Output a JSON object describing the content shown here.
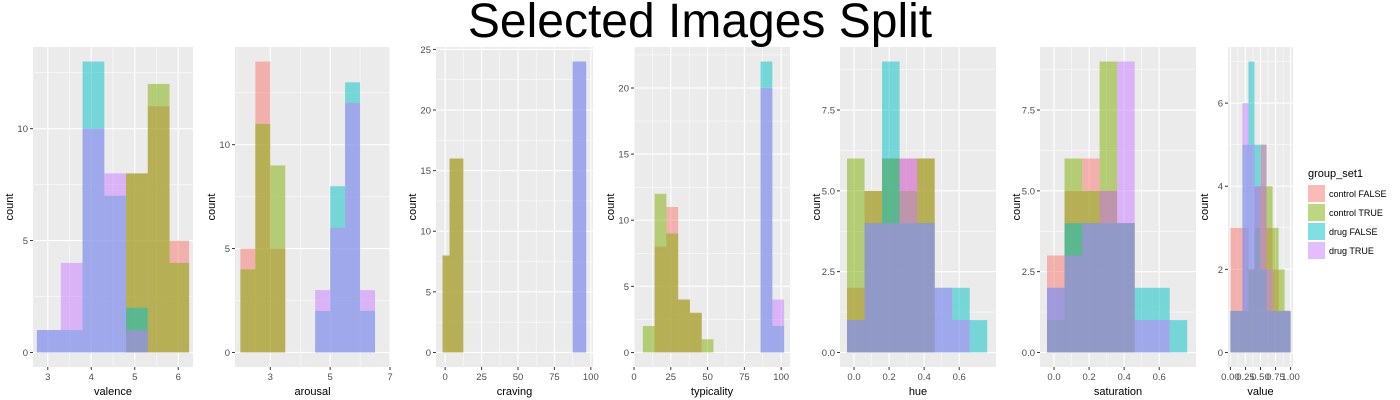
{
  "title": "Selected Images Split",
  "colors": {
    "control FALSE": "#F8766D",
    "control TRUE": "#7CAE00",
    "drug FALSE": "#00BFC4",
    "drug TRUE": "#C77CFF",
    "panel_bg": "#EBEBEB",
    "grid": "#FFFFFF"
  },
  "legend": {
    "title": "group_set1",
    "entries": [
      "control FALSE",
      "control TRUE",
      "drug FALSE",
      "drug TRUE"
    ]
  },
  "chart_data": [
    {
      "type": "bar",
      "xlabel": "valence",
      "ylabel": "count",
      "xlim": [
        2.66,
        6.34
      ],
      "ylim": [
        -0.65,
        13.65
      ],
      "xticks": [
        3,
        4,
        5,
        6
      ],
      "xticklabels": [
        "3",
        "4",
        "5",
        "6"
      ],
      "yticks": [
        0,
        5,
        10
      ],
      "yticklabels": [
        "0",
        "5",
        "10"
      ],
      "ybreaks": [
        0,
        2.5,
        5,
        7.5,
        10,
        12.5
      ],
      "series": [
        {
          "name": "control FALSE",
          "bars": [
            [
              4.8,
              5.3,
              8
            ],
            [
              5.3,
              5.8,
              11
            ],
            [
              5.8,
              6.25,
              5
            ]
          ]
        },
        {
          "name": "control TRUE",
          "bars": [
            [
              4.8,
              5.3,
              8
            ],
            [
              5.3,
              5.8,
              12
            ],
            [
              5.8,
              6.25,
              4
            ]
          ]
        },
        {
          "name": "drug FALSE",
          "bars": [
            [
              2.75,
              3.3,
              1
            ],
            [
              3.3,
              3.8,
              1
            ],
            [
              3.8,
              4.3,
              13
            ],
            [
              4.3,
              4.8,
              7
            ],
            [
              4.8,
              5.3,
              2
            ]
          ]
        },
        {
          "name": "drug TRUE",
          "bars": [
            [
              2.75,
              3.3,
              1
            ],
            [
              3.3,
              3.8,
              4
            ],
            [
              3.8,
              4.3,
              10
            ],
            [
              4.3,
              4.8,
              8
            ],
            [
              4.8,
              5.3,
              1
            ]
          ]
        }
      ]
    },
    {
      "type": "bar",
      "xlabel": "arousal",
      "ylabel": "count",
      "xlim": [
        1.82,
        7.0
      ],
      "ylim": [
        -0.7,
        14.7
      ],
      "xticks": [
        3,
        5,
        7
      ],
      "xticklabels": [
        "3",
        "5",
        "7"
      ],
      "yticks": [
        0,
        5,
        10
      ],
      "yticklabels": [
        "0",
        "5",
        "10"
      ],
      "ybreaks": [
        0,
        2.5,
        5,
        7.5,
        10,
        12.5
      ],
      "series": [
        {
          "name": "control FALSE",
          "bars": [
            [
              2.0,
              2.5,
              5
            ],
            [
              2.5,
              3.0,
              14
            ],
            [
              3.0,
              3.5,
              5
            ]
          ]
        },
        {
          "name": "control TRUE",
          "bars": [
            [
              2.0,
              2.5,
              4
            ],
            [
              2.5,
              3.0,
              11
            ],
            [
              3.0,
              3.5,
              9
            ]
          ]
        },
        {
          "name": "drug FALSE",
          "bars": [
            [
              4.5,
              5.0,
              2
            ],
            [
              5.0,
              5.5,
              8
            ],
            [
              5.5,
              6.0,
              13
            ],
            [
              6.0,
              6.5,
              2
            ]
          ]
        },
        {
          "name": "drug TRUE",
          "bars": [
            [
              4.5,
              5.0,
              3
            ],
            [
              5.0,
              5.5,
              6
            ],
            [
              5.5,
              6.0,
              12
            ],
            [
              6.0,
              6.5,
              3
            ]
          ]
        }
      ]
    },
    {
      "type": "bar",
      "xlabel": "craving",
      "ylabel": "count",
      "xlim": [
        -6.3,
        101.5
      ],
      "ylim": [
        -1.2,
        25.2
      ],
      "xticks": [
        0,
        25,
        50,
        75,
        100
      ],
      "xticklabels": [
        "0",
        "25",
        "50",
        "75",
        "100"
      ],
      "yticks": [
        0,
        5,
        10,
        15,
        20,
        25
      ],
      "yticklabels": [
        "0",
        "5",
        "10",
        "15",
        "20",
        "25"
      ],
      "ybreaks": [
        0,
        2.5,
        5,
        7.5,
        10,
        12.5,
        15,
        17.5,
        20,
        22.5,
        25
      ],
      "series": [
        {
          "name": "control FALSE",
          "bars": [
            [
              -1.8,
              3.0,
              8
            ],
            [
              3.0,
              12.5,
              16
            ]
          ]
        },
        {
          "name": "control TRUE",
          "bars": [
            [
              -1.8,
              3.0,
              8
            ],
            [
              3.0,
              12.5,
              16
            ]
          ]
        },
        {
          "name": "drug FALSE",
          "bars": [
            [
              87.5,
              96.8,
              24
            ]
          ]
        },
        {
          "name": "drug TRUE",
          "bars": [
            [
              87.5,
              96.8,
              24
            ]
          ]
        }
      ]
    },
    {
      "type": "bar",
      "xlabel": "typicality",
      "ylabel": "count",
      "xlim": [
        0,
        106
      ],
      "ylim": [
        -1.1,
        23.1
      ],
      "xticks": [
        0,
        25,
        50,
        75,
        100
      ],
      "xticklabels": [
        "0",
        "25",
        "50",
        "75",
        "100"
      ],
      "yticks": [
        0,
        5,
        10,
        15,
        20
      ],
      "yticklabels": [
        "0",
        "5",
        "10",
        "15",
        "20"
      ],
      "ybreaks": [
        0,
        2.5,
        5,
        7.5,
        10,
        12.5,
        15,
        17.5,
        20,
        22.5
      ],
      "series": [
        {
          "name": "control FALSE",
          "bars": [
            [
              14.0,
              22.0,
              8
            ],
            [
              22.0,
              30.0,
              11
            ],
            [
              30.0,
              38.0,
              4
            ],
            [
              38.0,
              46.0,
              3
            ]
          ]
        },
        {
          "name": "control TRUE",
          "bars": [
            [
              6.0,
              14.0,
              2
            ],
            [
              14.0,
              22.0,
              12
            ],
            [
              22.0,
              30.0,
              9
            ],
            [
              30.0,
              38.0,
              4
            ],
            [
              38.0,
              46.0,
              3
            ],
            [
              46.0,
              54.0,
              1
            ]
          ]
        },
        {
          "name": "drug FALSE",
          "bars": [
            [
              86.0,
              94.0,
              22
            ],
            [
              94.0,
              102.0,
              2
            ]
          ]
        },
        {
          "name": "drug TRUE",
          "bars": [
            [
              86.0,
              94.0,
              20
            ],
            [
              94.0,
              102.0,
              4
            ]
          ]
        }
      ]
    },
    {
      "type": "bar",
      "xlabel": "hue",
      "ylabel": "count",
      "xlim": [
        -0.08,
        0.81
      ],
      "ylim": [
        -0.45,
        9.45
      ],
      "xticks": [
        0.0,
        0.2,
        0.4,
        0.6
      ],
      "xticklabels": [
        "0.0",
        "0.2",
        "0.4",
        "0.6"
      ],
      "yticks": [
        0,
        2.5,
        5,
        7.5
      ],
      "yticklabels": [
        "0.0",
        "2.5",
        "5.0",
        "7.5"
      ],
      "ybreaks": [
        0,
        1.25,
        2.5,
        3.75,
        5,
        6.25,
        7.5,
        8.75
      ],
      "series": [
        {
          "name": "control FALSE",
          "bars": [
            [
              -0.04,
              0.06,
              2
            ],
            [
              0.06,
              0.16,
              5
            ],
            [
              0.16,
              0.26,
              6
            ],
            [
              0.26,
              0.36,
              6
            ],
            [
              0.36,
              0.46,
              6
            ]
          ]
        },
        {
          "name": "control TRUE",
          "bars": [
            [
              -0.04,
              0.06,
              6
            ],
            [
              0.06,
              0.16,
              5
            ],
            [
              0.16,
              0.26,
              6
            ],
            [
              0.26,
              0.36,
              5
            ],
            [
              0.36,
              0.46,
              6
            ]
          ]
        },
        {
          "name": "drug FALSE",
          "bars": [
            [
              -0.04,
              0.06,
              1
            ],
            [
              0.06,
              0.16,
              4
            ],
            [
              0.16,
              0.26,
              9
            ],
            [
              0.26,
              0.36,
              4
            ],
            [
              0.36,
              0.46,
              4
            ],
            [
              0.46,
              0.56,
              2
            ],
            [
              0.56,
              0.66,
              2
            ],
            [
              0.66,
              0.76,
              1
            ]
          ]
        },
        {
          "name": "drug TRUE",
          "bars": [
            [
              -0.04,
              0.06,
              1
            ],
            [
              0.06,
              0.16,
              4
            ],
            [
              0.16,
              0.26,
              4
            ],
            [
              0.26,
              0.36,
              6
            ],
            [
              0.36,
              0.46,
              4
            ],
            [
              0.46,
              0.56,
              2
            ],
            [
              0.56,
              0.66,
              1
            ]
          ]
        }
      ]
    },
    {
      "type": "bar",
      "xlabel": "saturation",
      "ylabel": "count",
      "xlim": [
        -0.08,
        0.81
      ],
      "ylim": [
        -0.45,
        9.45
      ],
      "xticks": [
        0.0,
        0.2,
        0.4,
        0.6
      ],
      "xticklabels": [
        "0.0",
        "0.2",
        "0.4",
        "0.6"
      ],
      "yticks": [
        0,
        2.5,
        5,
        7.5
      ],
      "yticklabels": [
        "0.0",
        "2.5",
        "5.0",
        "7.5"
      ],
      "ybreaks": [
        0,
        1.25,
        2.5,
        3.75,
        5,
        6.25,
        7.5,
        8.75
      ],
      "series": [
        {
          "name": "control FALSE",
          "bars": [
            [
              -0.04,
              0.06,
              3
            ],
            [
              0.06,
              0.16,
              5
            ],
            [
              0.16,
              0.26,
              6
            ],
            [
              0.26,
              0.36,
              5
            ],
            [
              0.36,
              0.46,
              4
            ]
          ]
        },
        {
          "name": "control TRUE",
          "bars": [
            [
              -0.04,
              0.06,
              1
            ],
            [
              0.06,
              0.16,
              6
            ],
            [
              0.16,
              0.26,
              5
            ],
            [
              0.26,
              0.36,
              9
            ],
            [
              0.36,
              0.46,
              4
            ]
          ]
        },
        {
          "name": "drug FALSE",
          "bars": [
            [
              -0.04,
              0.06,
              2
            ],
            [
              0.06,
              0.16,
              4
            ],
            [
              0.16,
              0.26,
              4
            ],
            [
              0.26,
              0.36,
              4
            ],
            [
              0.36,
              0.46,
              4
            ],
            [
              0.46,
              0.56,
              2
            ],
            [
              0.56,
              0.66,
              2
            ],
            [
              0.66,
              0.76,
              1
            ]
          ]
        },
        {
          "name": "drug TRUE",
          "bars": [
            [
              -0.04,
              0.06,
              2
            ],
            [
              0.06,
              0.16,
              3
            ],
            [
              0.16,
              0.26,
              4
            ],
            [
              0.26,
              0.36,
              5
            ],
            [
              0.36,
              0.46,
              9
            ],
            [
              0.46,
              0.56,
              1
            ],
            [
              0.56,
              0.66,
              1
            ]
          ]
        }
      ]
    },
    {
      "type": "bar",
      "xlabel": "value",
      "ylabel": "count",
      "xlim": [
        -0.04,
        1.04
      ],
      "ylim": [
        -0.35,
        7.35
      ],
      "xticks": [
        0,
        0.25,
        0.5,
        0.75,
        1.0
      ],
      "xticklabels": [
        "0.00",
        "0.25",
        "0.50",
        "0.75",
        "1.00"
      ],
      "yticks": [
        0,
        2,
        4,
        6
      ],
      "yticklabels": [
        "0",
        "2",
        "4",
        "6"
      ],
      "ybreaks": [
        0,
        1,
        2,
        3,
        4,
        5,
        6,
        7
      ],
      "series": [
        {
          "name": "control FALSE",
          "bars": [
            [
              0.0,
              0.1,
              3
            ],
            [
              0.1,
              0.2,
              3
            ],
            [
              0.2,
              0.3,
              3
            ],
            [
              0.3,
              0.4,
              2
            ],
            [
              0.4,
              0.5,
              4
            ],
            [
              0.5,
              0.6,
              4
            ],
            [
              0.6,
              0.7,
              3
            ],
            [
              0.7,
              0.8,
              2
            ],
            [
              0.8,
              0.9,
              1
            ],
            [
              0.9,
              1.0,
              1
            ]
          ]
        },
        {
          "name": "control TRUE",
          "bars": [
            [
              0.0,
              0.1,
              1
            ],
            [
              0.1,
              0.2,
              1
            ],
            [
              0.2,
              0.3,
              1
            ],
            [
              0.3,
              0.4,
              2
            ],
            [
              0.4,
              0.5,
              3
            ],
            [
              0.5,
              0.6,
              5
            ],
            [
              0.6,
              0.7,
              4
            ],
            [
              0.7,
              0.8,
              3
            ],
            [
              0.8,
              0.9,
              2
            ],
            [
              0.9,
              1.0,
              1
            ]
          ]
        },
        {
          "name": "drug FALSE",
          "bars": [
            [
              0.0,
              0.1,
              1
            ],
            [
              0.1,
              0.2,
              1
            ],
            [
              0.2,
              0.3,
              5
            ],
            [
              0.3,
              0.4,
              7
            ],
            [
              0.4,
              0.5,
              5
            ],
            [
              0.5,
              0.6,
              2
            ],
            [
              0.6,
              0.7,
              1
            ],
            [
              0.7,
              0.8,
              1
            ],
            [
              0.8,
              0.9,
              1
            ],
            [
              0.9,
              1.0,
              1
            ]
          ]
        },
        {
          "name": "drug TRUE",
          "bars": [
            [
              0.0,
              0.1,
              1
            ],
            [
              0.1,
              0.2,
              1
            ],
            [
              0.2,
              0.3,
              6
            ],
            [
              0.3,
              0.4,
              5
            ],
            [
              0.4,
              0.5,
              4
            ],
            [
              0.5,
              0.6,
              5
            ],
            [
              0.6,
              0.7,
              2
            ],
            [
              0.7,
              0.8,
              1
            ],
            [
              0.8,
              0.9,
              1
            ],
            [
              0.9,
              1.0,
              1
            ]
          ]
        }
      ]
    }
  ]
}
